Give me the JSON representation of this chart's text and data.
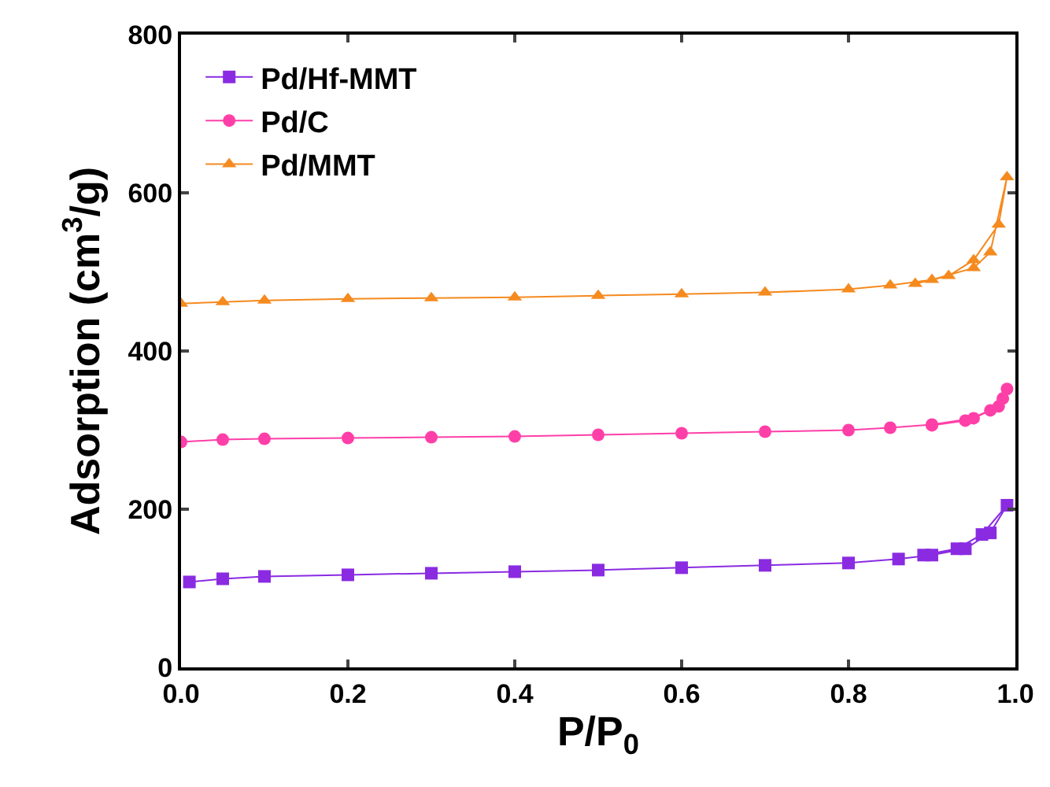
{
  "chart_data": {
    "type": "line",
    "xlabel": "P/P$_{0}$",
    "ylabel": "Adsorption (cm$^{3}$/g)",
    "xlim": [
      0,
      1
    ],
    "ylim": [
      0,
      800
    ],
    "xticks": [
      {
        "value": 0,
        "label": "0.0"
      },
      {
        "value": 0.2,
        "label": "0.2"
      },
      {
        "value": 0.4,
        "label": "0.4"
      },
      {
        "value": 0.6,
        "label": "0.6"
      },
      {
        "value": 0.8,
        "label": "0.8"
      },
      {
        "value": 1,
        "label": "1.0"
      }
    ],
    "yticks": [
      0,
      200,
      400,
      600,
      800
    ],
    "grid": false,
    "legend": "top left",
    "line_style": "solid",
    "series": [
      {
        "name": "Pd/Hf-MMT",
        "color": "#8a2be2",
        "marker": "square",
        "x": [
          0.01,
          0.05,
          0.1,
          0.2,
          0.3,
          0.4,
          0.5,
          0.6,
          0.7,
          0.8,
          0.86,
          0.9,
          0.94,
          0.97,
          0.99,
          0.96,
          0.93,
          0.89
        ],
        "values": [
          108,
          112,
          115,
          117,
          119,
          121,
          123,
          126,
          129,
          132,
          137,
          142,
          150,
          170,
          205,
          168,
          150,
          142
        ]
      },
      {
        "name": "Pd/C",
        "color": "#ff3fa8",
        "marker": "circle",
        "x": [
          0.0,
          0.05,
          0.1,
          0.2,
          0.3,
          0.4,
          0.5,
          0.6,
          0.7,
          0.8,
          0.85,
          0.9,
          0.95,
          0.98,
          0.99,
          0.985,
          0.97,
          0.94,
          0.9
        ],
        "values": [
          285,
          288,
          289,
          290,
          291,
          292,
          294,
          296,
          298,
          300,
          303,
          307,
          315,
          330,
          352,
          340,
          325,
          312,
          306
        ]
      },
      {
        "name": "Pd/MMT",
        "color": "#f58a1f",
        "marker": "triangle",
        "x": [
          0.0,
          0.05,
          0.1,
          0.2,
          0.3,
          0.4,
          0.5,
          0.6,
          0.7,
          0.8,
          0.85,
          0.9,
          0.95,
          0.97,
          0.99,
          0.98,
          0.95,
          0.92,
          0.88
        ],
        "values": [
          460,
          462,
          464,
          466,
          467,
          468,
          470,
          472,
          474,
          478,
          483,
          490,
          505,
          525,
          620,
          560,
          515,
          495,
          485
        ]
      }
    ]
  }
}
